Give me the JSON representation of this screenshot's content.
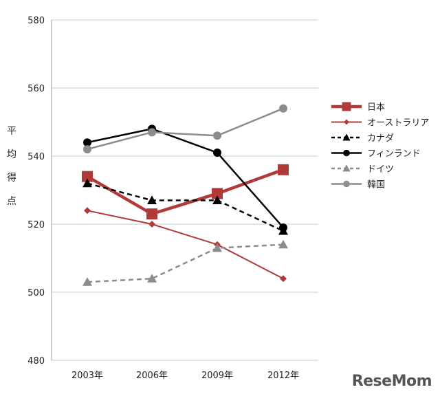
{
  "chart_data": {
    "type": "line",
    "title": "",
    "xlabel": "",
    "ylabel": "平均得点",
    "ylim": [
      480,
      580
    ],
    "y_ticks": [
      480,
      500,
      520,
      540,
      560,
      580
    ],
    "grid": "horizontal",
    "legend_position": "right",
    "categories": [
      "2003年",
      "2006年",
      "2009年",
      "2012年"
    ],
    "series": [
      {
        "name": "日本",
        "values": [
          534,
          523,
          529,
          536
        ],
        "color": "#B03A3A",
        "marker": "square",
        "dash": "solid",
        "width": "thick"
      },
      {
        "name": "オーストラリア",
        "values": [
          524,
          520,
          514,
          504
        ],
        "color": "#B03A3A",
        "marker": "diamond",
        "dash": "solid",
        "width": "thin"
      },
      {
        "name": "カナダ",
        "values": [
          532,
          527,
          527,
          518
        ],
        "color": "#000000",
        "marker": "triangle",
        "dash": "dashed",
        "width": "medium"
      },
      {
        "name": "フィンランド",
        "values": [
          544,
          548,
          541,
          519
        ],
        "color": "#000000",
        "marker": "circle",
        "dash": "solid",
        "width": "medium"
      },
      {
        "name": "ドイツ",
        "values": [
          503,
          504,
          513,
          514
        ],
        "color": "#8C8C8C",
        "marker": "triangle",
        "dash": "dashed",
        "width": "medium"
      },
      {
        "name": "韓国",
        "values": [
          542,
          547,
          546,
          554
        ],
        "color": "#8C8C8C",
        "marker": "circle",
        "dash": "solid",
        "width": "medium"
      }
    ]
  },
  "watermark": "ReseMom"
}
